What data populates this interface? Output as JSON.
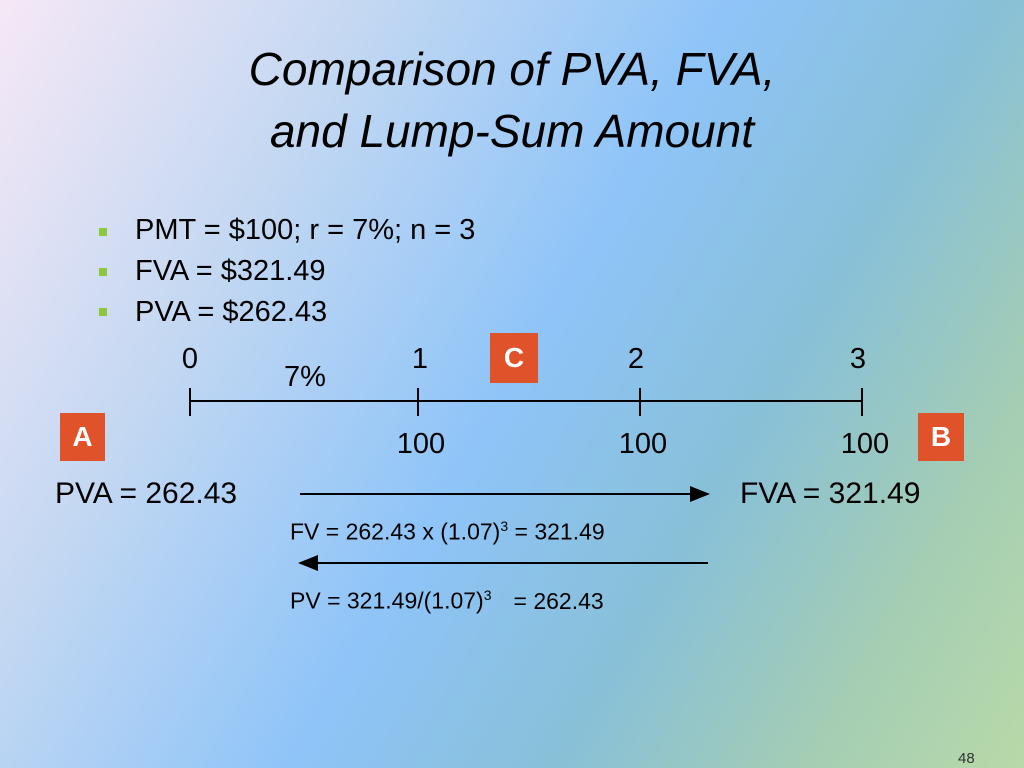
{
  "title": {
    "line1": "Comparison of PVA, FVA,",
    "line2": "and Lump-Sum Amount"
  },
  "bullets": [
    "PMT = $100; r = 7%; n = 3",
    "FVA  = $321.49",
    "PVA  = $262.43"
  ],
  "timeline": {
    "periods": [
      "0",
      "1",
      "2",
      "3"
    ],
    "rate": "7%",
    "payments": [
      "100",
      "100",
      "100"
    ]
  },
  "markers": {
    "a": "A",
    "b": "B",
    "c": "C"
  },
  "pva": "PVA = 262.43",
  "fva": "FVA = 321.49",
  "fv_formula": {
    "before": "FV = 262.43 x (1.07)",
    "exponent": "3",
    "after": "= 321.49"
  },
  "pv_formula": {
    "before": "PV = 321.49/(1.07)",
    "exponent": "3",
    "after": "= 262.43"
  },
  "page_number": "48"
}
